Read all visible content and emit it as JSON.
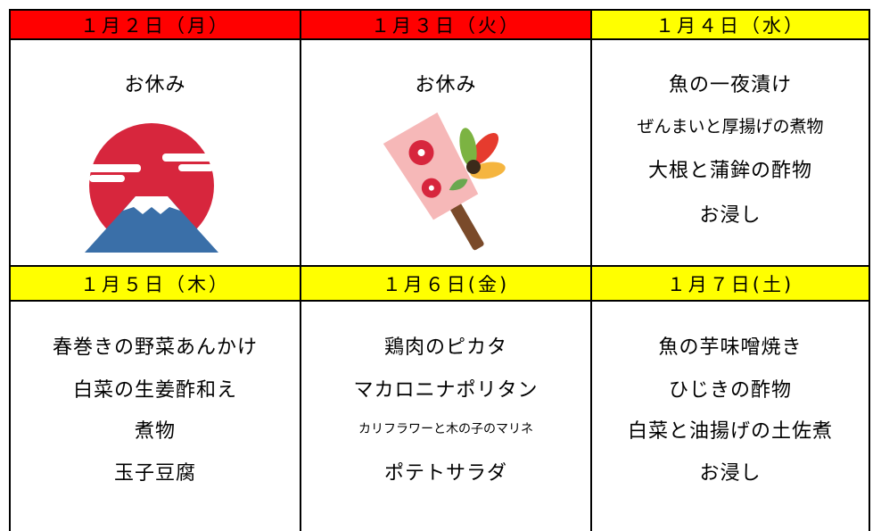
{
  "days": [
    {
      "date": "１月２日（月）",
      "items": [
        "お休み"
      ]
    },
    {
      "date": "１月３日（火）",
      "items": [
        "お休み"
      ]
    },
    {
      "date": "１月４日（水）",
      "items": [
        "魚の一夜漬け",
        "ぜんまいと厚揚げの煮物",
        "大根と蒲鉾の酢物",
        "お浸し"
      ]
    },
    {
      "date": "１月５日（木）",
      "items": [
        "春巻きの野菜あんかけ",
        "白菜の生姜酢和え",
        "煮物",
        "玉子豆腐"
      ]
    },
    {
      "date": "１月６日(金)",
      "items": [
        "鶏肉のピカタ",
        "マカロニナポリタン",
        "カリフラワーと木の子のマリネ",
        "ポテトサラダ"
      ]
    },
    {
      "date": "１月７日(土)",
      "items": [
        "魚の芋味噌焼き",
        "ひじきの酢物",
        "白菜と油揚げの土佐煮",
        "お浸し"
      ]
    }
  ]
}
